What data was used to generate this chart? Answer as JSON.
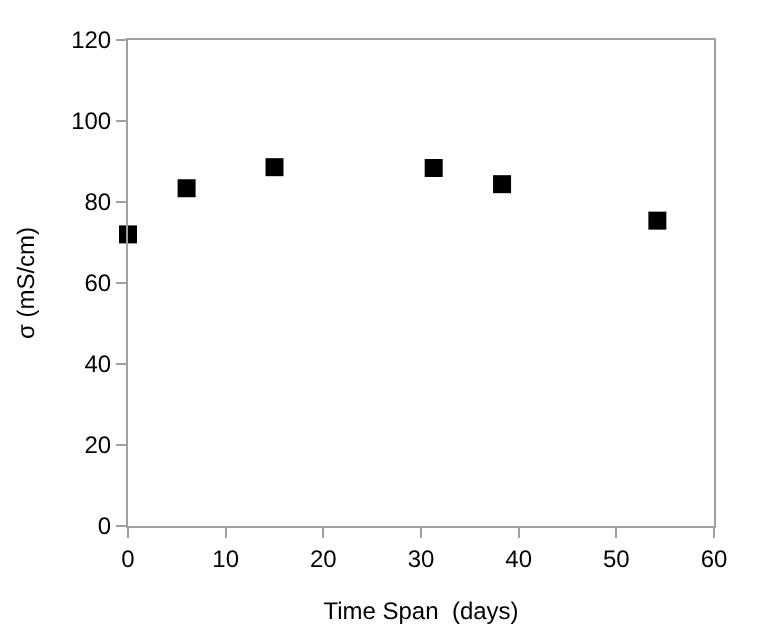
{
  "chart_data": {
    "type": "scatter",
    "xlabel": "Time Span  (days)",
    "ylabel": "σ (mS/cm)",
    "x": [
      0,
      6,
      15,
      31.3,
      38.3,
      54.2
    ],
    "series": [
      {
        "color": "#000000",
        "values": [
          72,
          83.4,
          88.6,
          88.4,
          84.4,
          75.4
        ]
      }
    ],
    "xlim": [
      0,
      60
    ],
    "xticks": [
      0,
      10,
      20,
      30,
      40,
      50,
      60
    ],
    "ylim": [
      0,
      120
    ],
    "yticks": [
      0,
      20,
      40,
      60,
      80,
      100,
      120
    ],
    "marker": "square"
  }
}
